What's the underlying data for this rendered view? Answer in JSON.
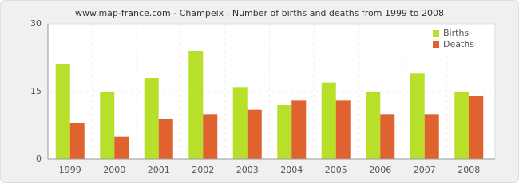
{
  "chart_data": {
    "type": "bar",
    "title": "www.map-france.com - Champeix : Number of births and deaths from 1999 to 2008",
    "categories": [
      "1999",
      "2000",
      "2001",
      "2002",
      "2003",
      "2004",
      "2005",
      "2006",
      "2007",
      "2008"
    ],
    "series": [
      {
        "name": "Births",
        "color": "#b8e02a",
        "values": [
          21,
          15,
          18,
          24,
          16,
          12,
          17,
          15,
          19,
          15
        ]
      },
      {
        "name": "Deaths",
        "color": "#e0622e",
        "values": [
          8,
          5,
          9,
          10,
          11,
          13,
          13,
          10,
          10,
          14
        ]
      }
    ],
    "ylim": [
      0,
      30
    ],
    "yticks": [
      0,
      15,
      30
    ],
    "grid": true,
    "legend": "top-right"
  }
}
